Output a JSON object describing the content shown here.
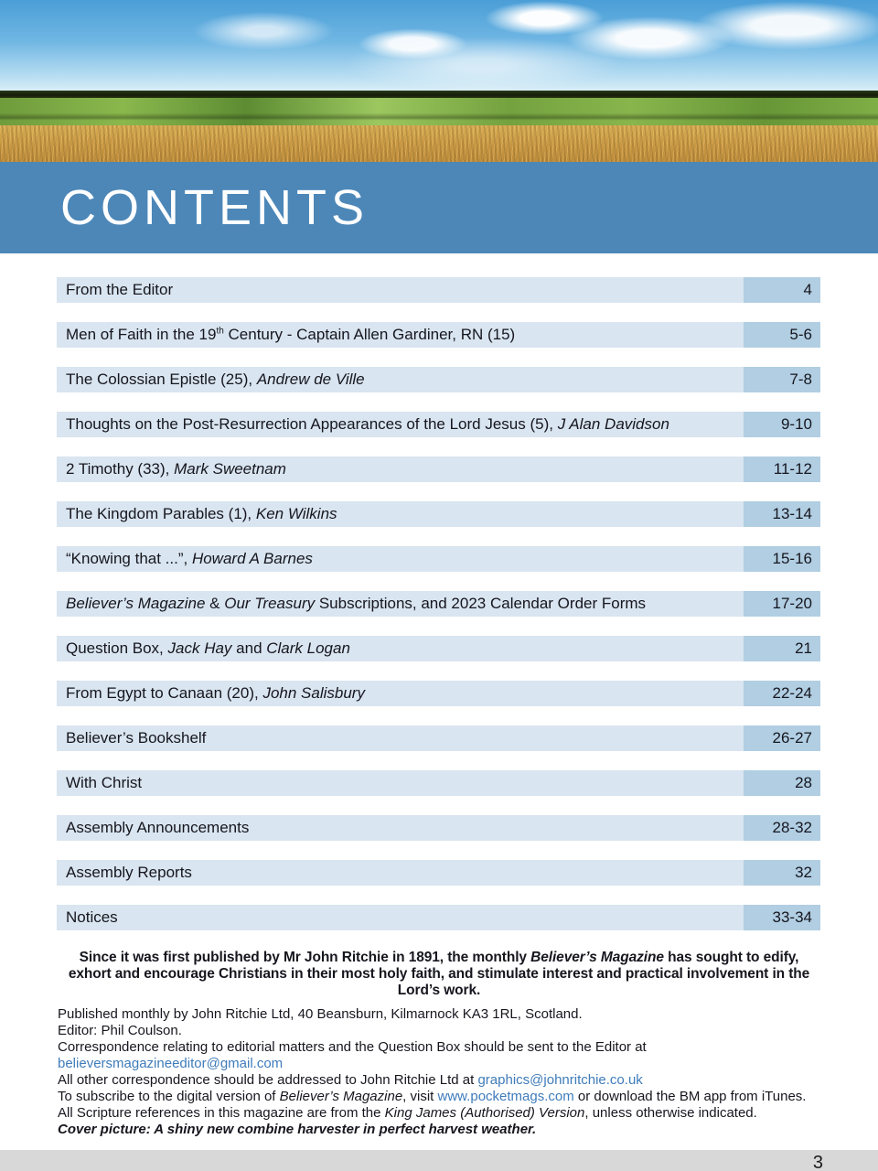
{
  "header": {
    "title": "CONTENTS"
  },
  "toc": {
    "rows": [
      {
        "title_segments": [
          {
            "text": "From the Editor"
          }
        ],
        "pages": "4"
      },
      {
        "title_segments": [
          {
            "text": "Men of Faith in the 19"
          },
          {
            "text": "th",
            "style": "sup"
          },
          {
            "text": " Century - Captain Allen Gardiner, RN (15)"
          }
        ],
        "pages": "5-6"
      },
      {
        "title_segments": [
          {
            "text": "The Colossian Epistle (25), "
          },
          {
            "text": "Andrew de Ville",
            "style": "italic"
          }
        ],
        "pages": "7-8"
      },
      {
        "title_segments": [
          {
            "text": "Thoughts on the Post-Resurrection Appearances of the Lord Jesus (5), "
          },
          {
            "text": "J Alan Davidson",
            "style": "italic"
          }
        ],
        "pages": "9-10"
      },
      {
        "title_segments": [
          {
            "text": "2 Timothy (33), "
          },
          {
            "text": "Mark Sweetnam",
            "style": "italic"
          }
        ],
        "pages": "11-12"
      },
      {
        "title_segments": [
          {
            "text": "The Kingdom Parables (1), "
          },
          {
            "text": "Ken Wilkins",
            "style": "italic"
          }
        ],
        "pages": "13-14"
      },
      {
        "title_segments": [
          {
            "text": "“Knowing that ...”, "
          },
          {
            "text": "Howard A Barnes",
            "style": "italic"
          }
        ],
        "pages": "15-16"
      },
      {
        "title_segments": [
          {
            "text": "Believer’s Magazine",
            "style": "italic"
          },
          {
            "text": " & "
          },
          {
            "text": "Our Treasury",
            "style": "italic"
          },
          {
            "text": " Subscriptions, and 2023 Calendar Order Forms"
          }
        ],
        "pages": "17-20"
      },
      {
        "title_segments": [
          {
            "text": "Question Box, "
          },
          {
            "text": "Jack Hay",
            "style": "italic"
          },
          {
            "text": " and "
          },
          {
            "text": "Clark Logan",
            "style": "italic"
          }
        ],
        "pages": "21"
      },
      {
        "title_segments": [
          {
            "text": "From Egypt to Canaan (20), "
          },
          {
            "text": "John Salisbury",
            "style": "italic"
          }
        ],
        "pages": "22-24"
      },
      {
        "title_segments": [
          {
            "text": "Believer’s Bookshelf"
          }
        ],
        "pages": "26-27"
      },
      {
        "title_segments": [
          {
            "text": "With Christ"
          }
        ],
        "pages": "28"
      },
      {
        "title_segments": [
          {
            "text": "Assembly Announcements"
          }
        ],
        "pages": "28-32"
      },
      {
        "title_segments": [
          {
            "text": "Assembly Reports"
          }
        ],
        "pages": "32"
      },
      {
        "title_segments": [
          {
            "text": "Notices"
          }
        ],
        "pages": "33-34"
      }
    ]
  },
  "mission": {
    "segments": [
      {
        "text": "Since it was first published by Mr John Ritchie in 1891, the monthly "
      },
      {
        "text": "Believer’s Magazine",
        "style": "italic"
      },
      {
        "text": " has sought to edify, exhort and encourage Christians in their most holy faith, and stimulate interest and practical involvement in the Lord’s work."
      }
    ]
  },
  "publication": {
    "lines": [
      {
        "segments": [
          {
            "text": "Published monthly by John Ritchie Ltd, 40 Beansburn, Kilmarnock KA3 1RL, Scotland."
          }
        ]
      },
      {
        "segments": [
          {
            "text": "Editor: Phil Coulson."
          }
        ]
      },
      {
        "segments": [
          {
            "text": "Correspondence relating to editorial matters and the Question Box should be sent to the Editor at "
          },
          {
            "text": "believersmagazineeditor@gmail.com",
            "style": "link",
            "name": "editor-email-link"
          }
        ]
      },
      {
        "segments": [
          {
            "text": "All other correspondence should be addressed to John Ritchie Ltd at "
          },
          {
            "text": "graphics@johnritchie.co.uk",
            "style": "link",
            "name": "graphics-email-link"
          }
        ]
      },
      {
        "segments": [
          {
            "text": "To subscribe to the digital version of "
          },
          {
            "text": "Believer’s Magazine",
            "style": "italic"
          },
          {
            "text": ", visit "
          },
          {
            "text": "www.pocketmags.com",
            "style": "link",
            "name": "pocketmags-link"
          },
          {
            "text": " or download the BM app from iTunes."
          }
        ]
      },
      {
        "segments": [
          {
            "text": "All Scripture references in this magazine are from the "
          },
          {
            "text": "King James (Authorised) Version",
            "style": "italic"
          },
          {
            "text": ", unless otherwise indicated."
          }
        ]
      },
      {
        "segments": [
          {
            "text": "Cover picture: A shiny new combine harvester in perfect harvest weather.",
            "style": "bold-italic"
          }
        ]
      }
    ]
  },
  "footer": {
    "page_number": "3"
  },
  "colors": {
    "band_blue": "#4c87b8",
    "row_bar": "#d9e5f0",
    "row_page_box": "#b1cee3",
    "footer_bar": "#d8d8d8",
    "link_blue": "#3f7cba"
  }
}
